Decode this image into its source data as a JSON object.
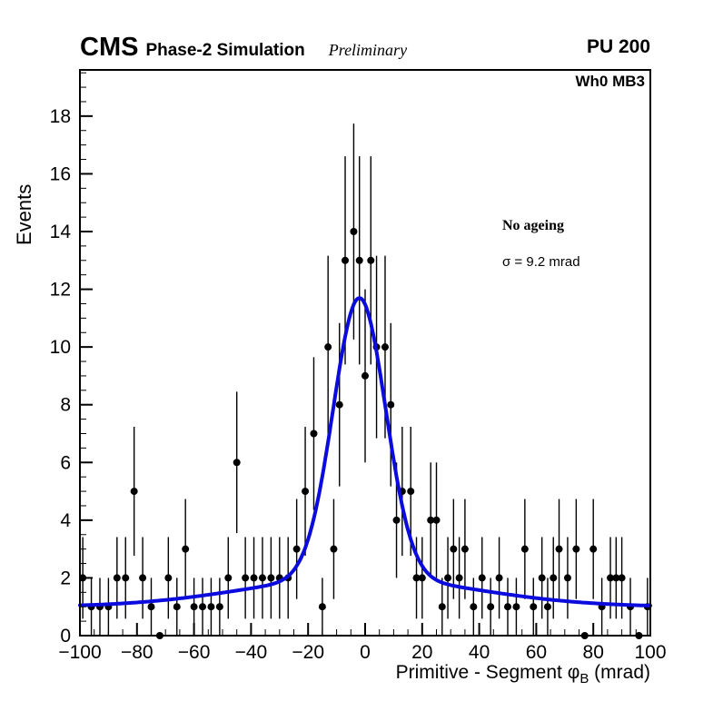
{
  "header": {
    "cms": "CMS",
    "subtitle": "Phase-2 Simulation",
    "preliminary": "Preliminary",
    "pileup": "PU 200"
  },
  "plot": {
    "chamber_label": "Wh0 MB3"
  },
  "legend": {
    "ageing": "No ageing",
    "sigma": "σ = 9.2 mrad"
  },
  "axes": {
    "y_title": "Events",
    "x_title_prefix": "Primitive - Segment φ",
    "x_title_sub": "B",
    "x_title_suffix": " (mrad)"
  },
  "chart_data": {
    "type": "scatter",
    "title": "",
    "xlabel": "Primitive - Segment phi_B (mrad)",
    "ylabel": "Events",
    "xlim": [
      -100,
      100
    ],
    "ylim": [
      0,
      19.6
    ],
    "x_ticks": [
      -100,
      -80,
      -60,
      -40,
      -20,
      0,
      20,
      40,
      60,
      80,
      100
    ],
    "y_ticks": [
      0,
      2,
      4,
      6,
      8,
      10,
      12,
      14,
      16,
      18
    ],
    "minor_x_step": 5,
    "minor_y_step": 0.5,
    "error_model": "sqrt",
    "points": [
      [
        -99,
        2
      ],
      [
        -96,
        1
      ],
      [
        -93,
        1
      ],
      [
        -90,
        1
      ],
      [
        -87,
        2
      ],
      [
        -84,
        2
      ],
      [
        -81,
        5
      ],
      [
        -78,
        2
      ],
      [
        -75,
        1
      ],
      [
        -72,
        0
      ],
      [
        -69,
        2
      ],
      [
        -66,
        1
      ],
      [
        -63,
        3
      ],
      [
        -60,
        1
      ],
      [
        -57,
        1
      ],
      [
        -54,
        1
      ],
      [
        -51,
        1
      ],
      [
        -48,
        2
      ],
      [
        -45,
        6
      ],
      [
        -42,
        2
      ],
      [
        -39,
        2
      ],
      [
        -36,
        2
      ],
      [
        -33,
        2
      ],
      [
        -30,
        2
      ],
      [
        -27,
        2
      ],
      [
        -24,
        3
      ],
      [
        -21,
        5
      ],
      [
        -18,
        7
      ],
      [
        -15,
        1
      ],
      [
        -13,
        10
      ],
      [
        -11,
        3
      ],
      [
        -9,
        8
      ],
      [
        -7,
        13
      ],
      [
        -4,
        14
      ],
      [
        -2,
        13
      ],
      [
        0,
        9
      ],
      [
        2,
        13
      ],
      [
        4,
        10
      ],
      [
        7,
        10
      ],
      [
        9,
        8
      ],
      [
        11,
        4
      ],
      [
        13,
        5
      ],
      [
        16,
        5
      ],
      [
        18,
        2
      ],
      [
        20,
        2
      ],
      [
        23,
        4
      ],
      [
        25,
        4
      ],
      [
        27,
        1
      ],
      [
        29,
        2
      ],
      [
        31,
        3
      ],
      [
        33,
        2
      ],
      [
        35,
        3
      ],
      [
        38,
        1
      ],
      [
        41,
        2
      ],
      [
        44,
        1
      ],
      [
        47,
        2
      ],
      [
        50,
        1
      ],
      [
        53,
        1
      ],
      [
        56,
        3
      ],
      [
        59,
        1
      ],
      [
        62,
        2
      ],
      [
        64,
        1
      ],
      [
        66,
        2
      ],
      [
        68,
        3
      ],
      [
        71,
        2
      ],
      [
        74,
        3
      ],
      [
        77,
        0
      ],
      [
        80,
        3
      ],
      [
        83,
        1
      ],
      [
        86,
        2
      ],
      [
        88,
        2
      ],
      [
        90,
        2
      ],
      [
        93,
        1
      ],
      [
        96,
        0
      ],
      [
        99,
        1
      ]
    ],
    "fit": {
      "shape": "gaussian_plus_background",
      "mean": -2,
      "sigma": 9.2,
      "amplitude": 9.7,
      "bg_offset": 1.0,
      "bg_amplitude": 1.0,
      "bg_sigma": 40,
      "peak_total": 11.7
    },
    "colors": {
      "marker": "#000000",
      "fit": "#0b0bdd",
      "axis": "#000000"
    },
    "legend_position": "middle-right",
    "grid": false
  }
}
